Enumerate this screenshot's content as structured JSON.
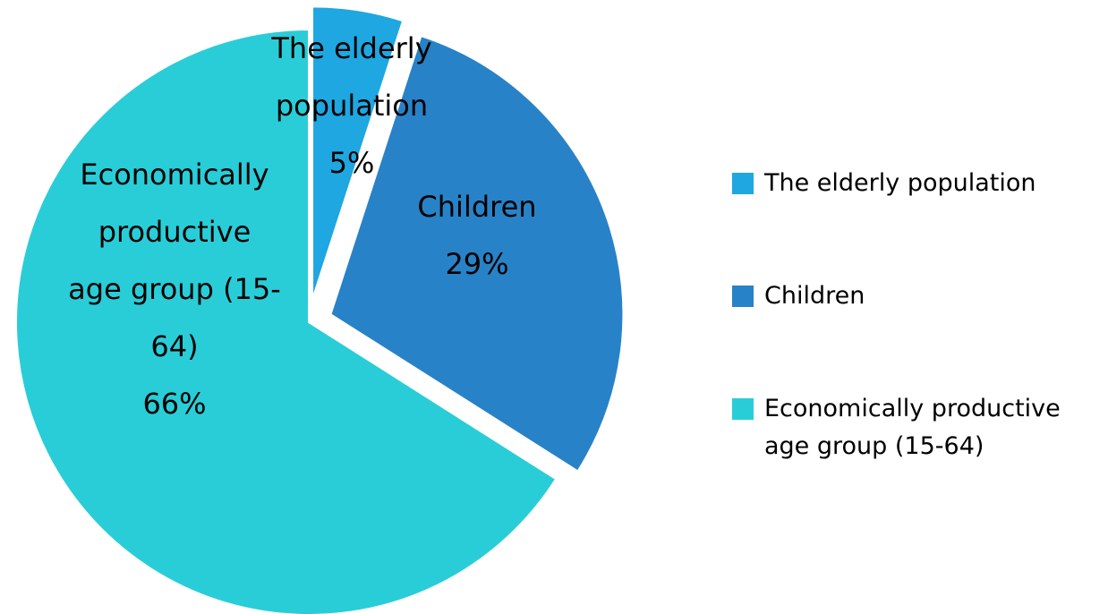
{
  "chart_data": {
    "type": "pie",
    "title": "",
    "series": [
      {
        "categories": [
          "The elderly population",
          "Children",
          "Economically productive age group (15-64)"
        ],
        "values": [
          5,
          29,
          66
        ]
      }
    ],
    "slices": [
      {
        "label": "The elderly population",
        "value": 5,
        "value_label": "5%",
        "label_lines": [
          "The elderly",
          "population",
          "5%"
        ],
        "color": "#1EA7E1",
        "exploded": true
      },
      {
        "label": "Children",
        "value": 29,
        "value_label": "29%",
        "label_lines": [
          "Children",
          "29%"
        ],
        "color": "#2882C7",
        "exploded": true
      },
      {
        "label": "Economically productive age group (15-64)",
        "value": 66,
        "value_label": "66%",
        "label_lines": [
          "Economically",
          "productive",
          "age group (15-",
          "64)",
          "66%"
        ],
        "color": "#29CDD7",
        "exploded": false
      }
    ],
    "start_angle": "12 o'clock",
    "direction": "clockwise",
    "legend_position": "right"
  },
  "legend": {
    "items": [
      {
        "label": "The elderly population",
        "color": "#1EA7E1"
      },
      {
        "label": "Children",
        "color": "#2882C7"
      },
      {
        "label": "Economically productive age group (15-64)",
        "color": "#29CDD7"
      }
    ]
  }
}
